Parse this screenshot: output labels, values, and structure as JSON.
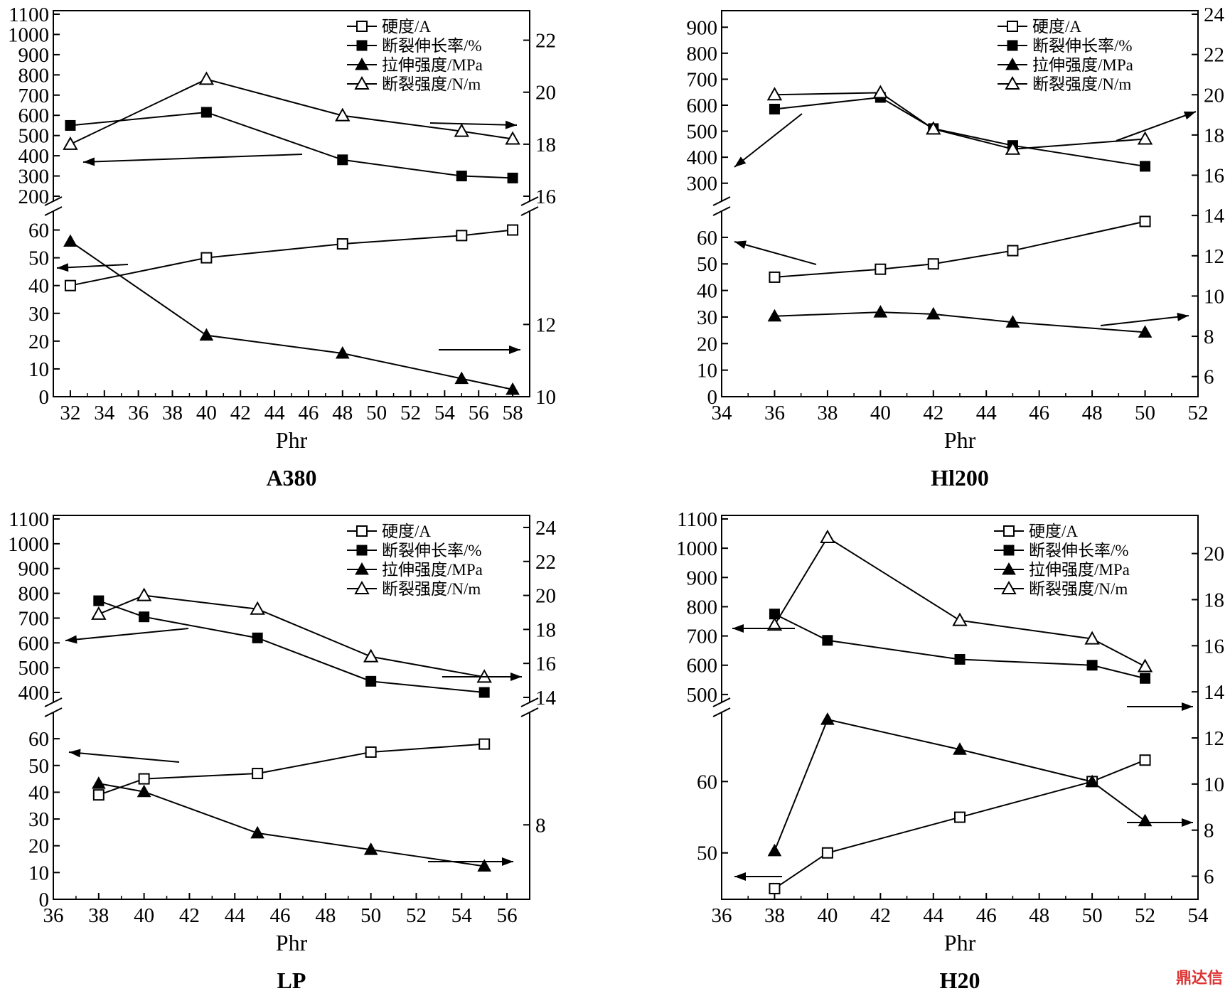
{
  "watermark": "鼎达信",
  "legend_labels": [
    "硬度/A",
    "断裂伸长率/%",
    "拉伸强度/MPa",
    "断裂强度/N/m"
  ],
  "chart_data": [
    {
      "type": "line",
      "caption": "A380",
      "xlabel": "Phr",
      "xlim": [
        31,
        59
      ],
      "xticks": [
        32,
        34,
        36,
        38,
        40,
        42,
        44,
        46,
        48,
        50,
        52,
        54,
        56,
        58
      ],
      "left_axis_broken": true,
      "left_upper_ylim": [
        200,
        1100
      ],
      "left_upper_ticks": [
        200,
        300,
        400,
        500,
        600,
        700,
        800,
        900,
        1000,
        1100
      ],
      "left_lower_ylim": [
        0,
        65
      ],
      "left_lower_ticks": [
        0,
        10,
        20,
        30,
        40,
        50,
        60
      ],
      "right_axis_broken": true,
      "right_upper_ylim": [
        16,
        23
      ],
      "right_upper_ticks": [
        16,
        18,
        20,
        22
      ],
      "right_lower_ylim": [
        10,
        15
      ],
      "right_lower_ticks": [
        10,
        12
      ],
      "series": [
        {
          "name": "硬度/A",
          "marker": "open-square",
          "axis": "left-lower",
          "x": [
            32,
            40,
            48,
            55,
            58
          ],
          "y": [
            40,
            50,
            55,
            58,
            60
          ]
        },
        {
          "name": "断裂伸长率/%",
          "marker": "filled-square",
          "axis": "left-upper",
          "x": [
            32,
            40,
            48,
            55,
            58
          ],
          "y": [
            550,
            615,
            380,
            300,
            290
          ]
        },
        {
          "name": "拉伸强度/MPa",
          "marker": "filled-triangle",
          "axis": "right-lower",
          "x": [
            32,
            40,
            48,
            55,
            58
          ],
          "y": [
            14.3,
            11.7,
            11.2,
            10.5,
            10.2
          ]
        },
        {
          "name": "断裂强度/N/m",
          "marker": "open-triangle",
          "axis": "right-upper",
          "x": [
            32,
            40,
            48,
            55,
            58
          ],
          "y": [
            18.0,
            20.5,
            19.1,
            18.5,
            18.2
          ]
        }
      ],
      "arrows": [
        "left",
        "left",
        "right",
        "right"
      ]
    },
    {
      "type": "line",
      "caption": "Hl200",
      "xlabel": "Phr",
      "xlim": [
        34,
        52
      ],
      "xticks": [
        34,
        36,
        38,
        40,
        42,
        44,
        46,
        48,
        50,
        52
      ],
      "left_axis_broken": true,
      "left_upper_ylim": [
        250,
        950
      ],
      "left_upper_ticks": [
        300,
        400,
        500,
        600,
        700,
        800,
        900
      ],
      "left_lower_ylim": [
        0,
        68
      ],
      "left_lower_ticks": [
        0,
        10,
        20,
        30,
        40,
        50,
        60
      ],
      "right_axis_broken": false,
      "right_ylim": [
        5,
        24
      ],
      "right_ticks": [
        6,
        8,
        10,
        12,
        14,
        16,
        18,
        20,
        22,
        24
      ],
      "series": [
        {
          "name": "硬度/A",
          "marker": "open-square",
          "axis": "left-lower",
          "x": [
            36,
            40,
            42,
            45,
            50
          ],
          "y": [
            45,
            48,
            50,
            55,
            66
          ]
        },
        {
          "name": "断裂伸长率/%",
          "marker": "filled-square",
          "axis": "left-upper",
          "x": [
            36,
            40,
            42,
            45,
            50
          ],
          "y": [
            585,
            630,
            510,
            445,
            365
          ]
        },
        {
          "name": "拉伸强度/MPa",
          "marker": "filled-triangle",
          "axis": "right",
          "x": [
            36,
            40,
            42,
            45,
            50
          ],
          "y": [
            9.0,
            9.2,
            9.1,
            8.7,
            8.2
          ]
        },
        {
          "name": "断裂强度/N/m",
          "marker": "open-triangle",
          "axis": "right",
          "x": [
            36,
            40,
            42,
            45,
            50
          ],
          "y": [
            20.0,
            20.1,
            18.3,
            17.3,
            17.8
          ]
        }
      ],
      "arrows": [
        "left",
        "left",
        "right",
        "right"
      ]
    },
    {
      "type": "line",
      "caption": "LP",
      "xlabel": "Phr",
      "xlim": [
        36,
        57
      ],
      "xticks": [
        36,
        38,
        40,
        42,
        44,
        46,
        48,
        50,
        52,
        54,
        56
      ],
      "left_axis_broken": true,
      "left_upper_ylim": [
        380,
        1100
      ],
      "left_upper_ticks": [
        400,
        500,
        600,
        700,
        800,
        900,
        1000,
        1100
      ],
      "left_lower_ylim": [
        0,
        68
      ],
      "left_lower_ticks": [
        0,
        10,
        20,
        30,
        40,
        50,
        60
      ],
      "right_axis_broken": true,
      "right_upper_ylim": [
        14,
        24.5
      ],
      "right_upper_ticks": [
        14,
        16,
        18,
        20,
        22,
        24
      ],
      "right_lower_ylim": [
        6.2,
        10.6
      ],
      "right_lower_ticks": [
        8
      ],
      "series": [
        {
          "name": "硬度/A",
          "marker": "open-square",
          "axis": "left-lower",
          "x": [
            38,
            40,
            45,
            50,
            55
          ],
          "y": [
            39,
            45,
            47,
            55,
            58
          ]
        },
        {
          "name": "断裂伸长率/%",
          "marker": "filled-square",
          "axis": "left-upper",
          "x": [
            38,
            40,
            45,
            50,
            55
          ],
          "y": [
            770,
            705,
            620,
            445,
            400
          ]
        },
        {
          "name": "拉伸强度/MPa",
          "marker": "filled-triangle",
          "axis": "right-lower",
          "x": [
            38,
            40,
            45,
            50,
            55
          ],
          "y": [
            9.0,
            8.8,
            7.8,
            7.4,
            7.0
          ]
        },
        {
          "name": "断裂强度/N/m",
          "marker": "open-triangle",
          "axis": "right-upper",
          "x": [
            38,
            40,
            45,
            50,
            55
          ],
          "y": [
            18.9,
            20.0,
            19.2,
            16.4,
            15.2
          ]
        }
      ],
      "arrows": [
        "left",
        "left",
        "right",
        "right"
      ]
    },
    {
      "type": "line",
      "caption": "H20",
      "xlabel": "Phr",
      "xlim": [
        36,
        54
      ],
      "xticks": [
        36,
        38,
        40,
        42,
        44,
        46,
        48,
        50,
        52,
        54
      ],
      "left_axis_broken": true,
      "left_upper_ylim": [
        490,
        1100
      ],
      "left_upper_ticks": [
        500,
        600,
        700,
        800,
        900,
        1000,
        1100
      ],
      "left_lower_ylim": [
        43.5,
        69
      ],
      "left_lower_ticks": [
        50,
        60
      ],
      "right_axis_broken": false,
      "right_ylim": [
        5,
        21.5
      ],
      "right_ticks": [
        6,
        8,
        10,
        12,
        14,
        16,
        18,
        20
      ],
      "series": [
        {
          "name": "硬度/A",
          "marker": "open-square",
          "axis": "left-lower",
          "x": [
            38,
            40,
            45,
            50,
            52
          ],
          "y": [
            45,
            50,
            55,
            60,
            63
          ]
        },
        {
          "name": "断裂伸长率/%",
          "marker": "filled-square",
          "axis": "left-upper",
          "x": [
            38,
            40,
            45,
            50,
            52
          ],
          "y": [
            775,
            685,
            620,
            600,
            555
          ]
        },
        {
          "name": "拉伸强度/MPa",
          "marker": "filled-triangle",
          "axis": "right",
          "x": [
            38,
            40,
            45,
            50,
            52
          ],
          "y": [
            7.1,
            12.8,
            11.5,
            10.1,
            8.4
          ]
        },
        {
          "name": "断裂强度/N/m",
          "marker": "open-triangle",
          "axis": "right",
          "x": [
            38,
            40,
            45,
            50,
            52
          ],
          "y": [
            16.9,
            20.7,
            17.1,
            16.3,
            15.1
          ]
        }
      ],
      "arrows": [
        "left",
        "left",
        "right",
        "right"
      ]
    }
  ]
}
